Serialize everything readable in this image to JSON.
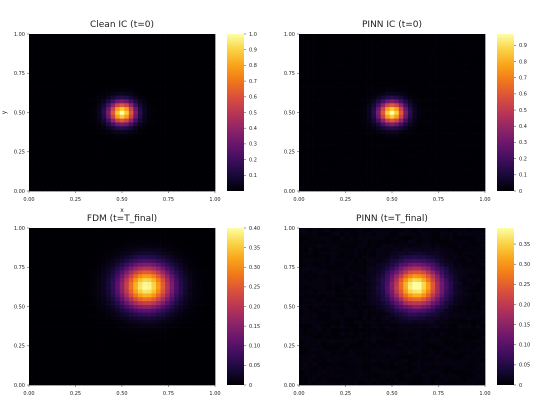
{
  "chart_data": [
    {
      "type": "heatmap",
      "title": "Clean IC (t=0)",
      "xlabel": "x",
      "ylabel": "y",
      "xlim": [
        0.0,
        1.0
      ],
      "ylim": [
        0.0,
        1.0
      ],
      "x_ticks": [
        "0.00",
        "0.25",
        "0.50",
        "0.75",
        "1.00"
      ],
      "y_ticks": [
        "0.00",
        "0.25",
        "0.50",
        "0.75",
        "1.00"
      ],
      "colorbar_range": [
        0.0,
        1.0
      ],
      "colorbar_ticks": [
        "0.1",
        "0.2",
        "0.3",
        "0.4",
        "0.5",
        "0.6",
        "0.7",
        "0.8",
        "0.9",
        "1.0"
      ],
      "colormap": "inferno",
      "field": {
        "peak": 1.0,
        "center": [
          0.5,
          0.5
        ],
        "sigma": 0.05,
        "noise": 0.0
      }
    },
    {
      "type": "heatmap",
      "title": "PINN IC (t=0)",
      "xlabel": "",
      "ylabel": "",
      "xlim": [
        0.0,
        1.0
      ],
      "ylim": [
        0.0,
        1.0
      ],
      "x_ticks": [
        "0.00",
        "0.25",
        "0.50",
        "0.75",
        "1.00"
      ],
      "y_ticks": [
        "0.00",
        "0.25",
        "0.50",
        "0.75",
        "1.00"
      ],
      "colorbar_range": [
        0.0,
        0.97
      ],
      "colorbar_ticks": [
        "0",
        "0.1",
        "0.2",
        "0.3",
        "0.4",
        "0.5",
        "0.6",
        "0.7",
        "0.8",
        "0.9"
      ],
      "colormap": "inferno",
      "field": {
        "peak": 0.97,
        "center": [
          0.5,
          0.5
        ],
        "sigma": 0.05,
        "noise": 0.01
      }
    },
    {
      "type": "heatmap",
      "title": "FDM (t=T_final)",
      "xlabel": "",
      "ylabel": "",
      "xlim": [
        0.0,
        1.0
      ],
      "ylim": [
        0.0,
        1.0
      ],
      "x_ticks": [
        "0.00",
        "0.25",
        "0.50",
        "0.75",
        "1.00"
      ],
      "y_ticks": [
        "0.00",
        "0.25",
        "0.50",
        "0.75",
        "1.00"
      ],
      "colorbar_range": [
        0.0,
        0.4
      ],
      "colorbar_ticks": [
        "0",
        "0.05",
        "0.10",
        "0.15",
        "0.20",
        "0.25",
        "0.30",
        "0.35",
        "0.40"
      ],
      "colormap": "inferno",
      "field": {
        "peak": 0.4,
        "center": [
          0.63,
          0.63
        ],
        "sigma": 0.095,
        "noise": 0.0
      }
    },
    {
      "type": "heatmap",
      "title": "PINN (t=T_final)",
      "xlabel": "",
      "ylabel": "",
      "xlim": [
        0.0,
        1.0
      ],
      "ylim": [
        0.0,
        1.0
      ],
      "x_ticks": [
        "0.00",
        "0.25",
        "0.50",
        "0.75",
        "1.00"
      ],
      "y_ticks": [
        "0.00",
        "0.25",
        "0.50",
        "0.75",
        "1.00"
      ],
      "colorbar_range": [
        0.0,
        0.39
      ],
      "colorbar_ticks": [
        "0",
        "0.05",
        "0.10",
        "0.15",
        "0.20",
        "0.25",
        "0.30",
        "0.35"
      ],
      "colormap": "inferno",
      "field": {
        "peak": 0.39,
        "center": [
          0.63,
          0.63
        ],
        "sigma": 0.09,
        "noise": 0.02
      }
    }
  ]
}
